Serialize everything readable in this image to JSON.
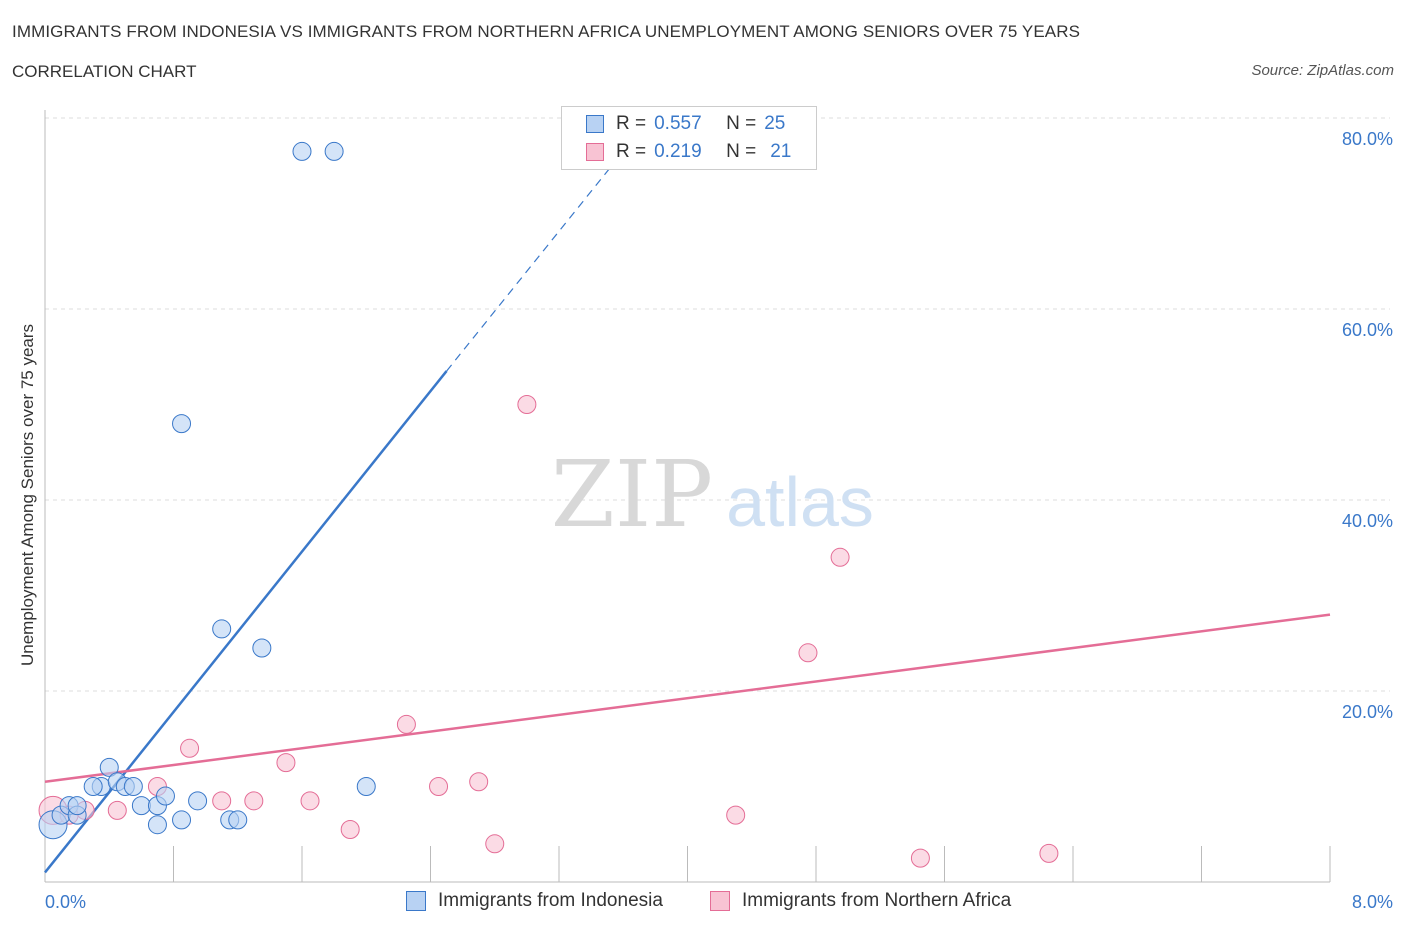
{
  "header": {
    "title": "IMMIGRANTS FROM INDONESIA VS IMMIGRANTS FROM NORTHERN AFRICA UNEMPLOYMENT AMONG SENIORS OVER 75 YEARS",
    "subtitle": "CORRELATION CHART",
    "source": "Source: ZipAtlas.com"
  },
  "watermark": {
    "zip": "ZIP",
    "atlas": "atlas"
  },
  "legend": {
    "r_label": "R =",
    "n_label": "N =",
    "series": [
      {
        "r": "0.557",
        "n": "25"
      },
      {
        "r": "0.219",
        "n": "21"
      }
    ]
  },
  "chart_data": {
    "type": "scatter",
    "title": "IMMIGRANTS FROM INDONESIA VS IMMIGRANTS FROM NORTHERN AFRICA UNEMPLOYMENT AMONG SENIORS OVER 75 YEARS",
    "subtitle": "CORRELATION CHART",
    "xlabel": "",
    "ylabel": "Unemployment Among Seniors over 75 years",
    "xlim": [
      0,
      8
    ],
    "ylim": [
      0,
      80
    ],
    "x_tick_labels": [
      "0.0%",
      "8.0%"
    ],
    "y_ticks": [
      20,
      40,
      60,
      80
    ],
    "y_tick_labels": [
      "20.0%",
      "40.0%",
      "60.0%",
      "80.0%"
    ],
    "grid": true,
    "colors": {
      "indonesia": "#3a78c9",
      "indonesia_fill": "#b8d2f3",
      "northern_africa": "#e46d96",
      "northern_africa_fill": "#f8c3d3",
      "tick_text": "#3a78c9"
    },
    "series": [
      {
        "name": "Immigrants from Indonesia",
        "r": 0.557,
        "n": 25,
        "points": [
          [
            0.05,
            6.0
          ],
          [
            0.1,
            7.0
          ],
          [
            0.15,
            8.0
          ],
          [
            0.2,
            7.0
          ],
          [
            0.2,
            8.0
          ],
          [
            0.35,
            10.0
          ],
          [
            0.4,
            12.0
          ],
          [
            0.45,
            10.5
          ],
          [
            0.5,
            10.0
          ],
          [
            0.55,
            10.0
          ],
          [
            0.6,
            8.0
          ],
          [
            0.7,
            8.0
          ],
          [
            0.7,
            6.0
          ],
          [
            0.75,
            9.0
          ],
          [
            0.85,
            6.5
          ],
          [
            0.95,
            8.5
          ],
          [
            1.15,
            6.5
          ],
          [
            1.2,
            6.5
          ],
          [
            0.3,
            10.0
          ],
          [
            1.1,
            26.5
          ],
          [
            1.35,
            24.5
          ],
          [
            2.0,
            10.0
          ],
          [
            0.85,
            48.0
          ],
          [
            1.6,
            76.5
          ],
          [
            1.8,
            76.5
          ]
        ],
        "trend": {
          "x0": 0.0,
          "y0": 1.0,
          "x1": 2.5,
          "y1": 53.5,
          "dash_x1": 3.6,
          "dash_y1": 76.5
        }
      },
      {
        "name": "Immigrants from Northern Africa",
        "r": 0.219,
        "n": 21,
        "points": [
          [
            0.05,
            7.5
          ],
          [
            0.25,
            7.5
          ],
          [
            0.45,
            7.5
          ],
          [
            0.7,
            10.0
          ],
          [
            0.9,
            14.0
          ],
          [
            1.1,
            8.5
          ],
          [
            1.3,
            8.5
          ],
          [
            1.5,
            12.5
          ],
          [
            1.65,
            8.5
          ],
          [
            1.9,
            5.5
          ],
          [
            2.25,
            16.5
          ],
          [
            2.45,
            10.0
          ],
          [
            2.7,
            10.5
          ],
          [
            2.8,
            4.0
          ],
          [
            3.0,
            50.0
          ],
          [
            4.3,
            7.0
          ],
          [
            4.75,
            24.0
          ],
          [
            4.95,
            34.0
          ],
          [
            5.45,
            2.5
          ],
          [
            6.25,
            3.0
          ],
          [
            0.15,
            7.0
          ]
        ],
        "trend": {
          "x0": 0.0,
          "y0": 10.5,
          "x1": 8.0,
          "y1": 28.0
        }
      }
    ]
  },
  "bottom_legend": [
    {
      "label": "Immigrants from Indonesia"
    },
    {
      "label": "Immigrants from Northern Africa"
    }
  ]
}
